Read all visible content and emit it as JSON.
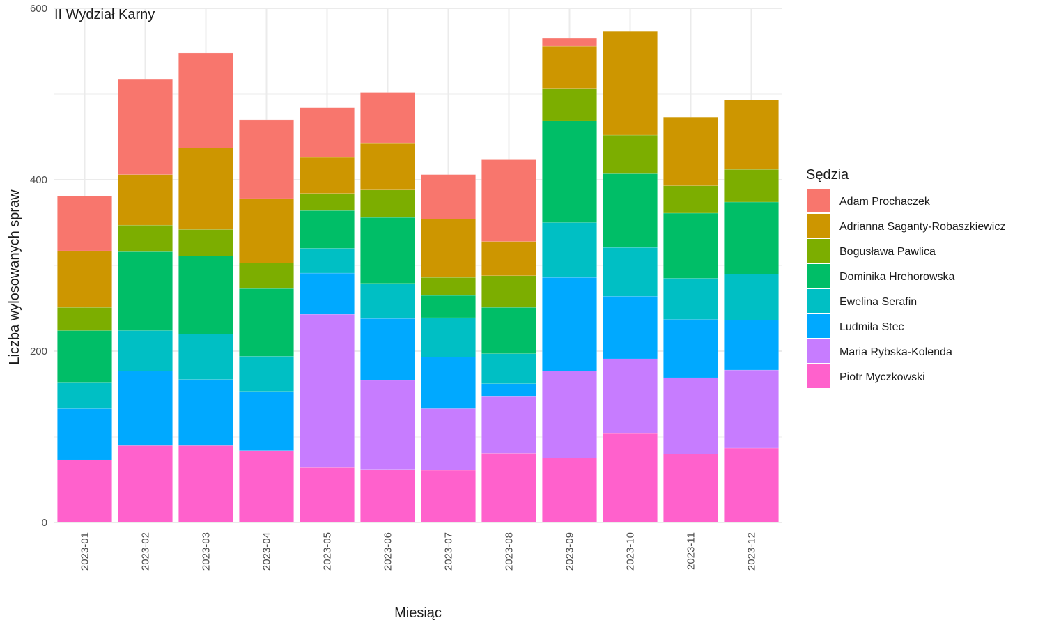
{
  "chart_data": {
    "type": "bar",
    "stacked": true,
    "title": "II Wydział Karny",
    "xlabel": "Miesiąc",
    "ylabel": "Liczba wylosowanych spraw",
    "ylim": [
      0,
      600
    ],
    "yticks": [
      0,
      200,
      400,
      600
    ],
    "grid": true,
    "legend_title": "Sędzia",
    "legend_position": "right",
    "categories": [
      "2023-01",
      "2023-02",
      "2023-03",
      "2023-04",
      "2023-05",
      "2023-06",
      "2023-07",
      "2023-08",
      "2023-09",
      "2023-10",
      "2023-11",
      "2023-12"
    ],
    "series": [
      {
        "name": "Adam Prochaczek",
        "color": "#F8766D",
        "values": [
          64,
          111,
          111,
          92,
          58,
          59,
          52,
          96,
          9,
          0,
          0,
          0
        ]
      },
      {
        "name": "Adrianna Saganty-Robaszkiewicz",
        "color": "#CD9600",
        "values": [
          66,
          59,
          95,
          75,
          42,
          55,
          68,
          40,
          50,
          121,
          80,
          81
        ]
      },
      {
        "name": "Bogusława Pawlica",
        "color": "#7CAE00",
        "values": [
          27,
          31,
          31,
          30,
          20,
          32,
          21,
          37,
          37,
          45,
          32,
          38
        ]
      },
      {
        "name": "Dominika Hrehorowska",
        "color": "#00BE67",
        "values": [
          61,
          92,
          91,
          79,
          44,
          77,
          26,
          54,
          119,
          86,
          76,
          84
        ]
      },
      {
        "name": "Ewelina Serafin",
        "color": "#00BFC4",
        "values": [
          30,
          47,
          53,
          41,
          29,
          41,
          46,
          35,
          64,
          57,
          48,
          54
        ]
      },
      {
        "name": "Ludmiła Stec",
        "color": "#00A9FF",
        "values": [
          60,
          87,
          77,
          69,
          48,
          72,
          60,
          15,
          109,
          73,
          68,
          58
        ]
      },
      {
        "name": "Maria Rybska-Kolenda",
        "color": "#C77CFF",
        "values": [
          0,
          0,
          0,
          0,
          179,
          104,
          72,
          66,
          102,
          87,
          89,
          91
        ]
      },
      {
        "name": "Piotr Myczkowski",
        "color": "#FF61CC",
        "values": [
          73,
          90,
          90,
          84,
          64,
          62,
          61,
          81,
          75,
          104,
          80,
          87
        ]
      }
    ]
  }
}
